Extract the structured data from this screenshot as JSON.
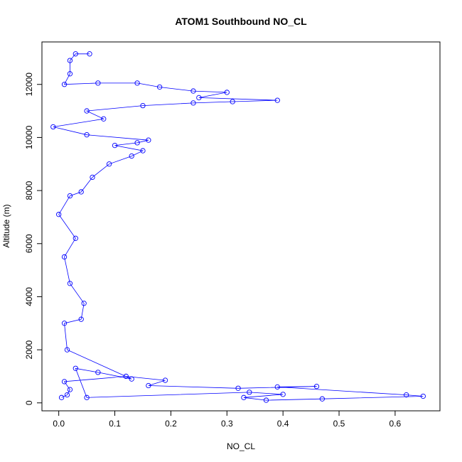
{
  "chart_data": {
    "type": "scatter",
    "title": "ATOM1 Southbound NO_CL",
    "xlabel": "NO_CL",
    "ylabel": "Altitude (m)",
    "xlim": [
      -0.03,
      0.68
    ],
    "ylim": [
      -300,
      13600
    ],
    "xticks": [
      0.0,
      0.1,
      0.2,
      0.3,
      0.4,
      0.5,
      0.6
    ],
    "xtick_labels": [
      "0.0",
      "0.1",
      "0.2",
      "0.3",
      "0.4",
      "0.5",
      "0.6"
    ],
    "yticks": [
      0,
      2000,
      4000,
      6000,
      8000,
      10000,
      12000
    ],
    "ytick_labels": [
      "0",
      "2000",
      "4000",
      "6000",
      "8000",
      "10000",
      "12000"
    ],
    "series_color": "#0000ff",
    "marker": "open-circle",
    "connected_line": true,
    "grid": false,
    "legend": "none",
    "points": [
      {
        "x": 0.005,
        "y": 200
      },
      {
        "x": 0.015,
        "y": 300
      },
      {
        "x": 0.02,
        "y": 500
      },
      {
        "x": 0.01,
        "y": 800
      },
      {
        "x": 0.12,
        "y": 1000
      },
      {
        "x": 0.19,
        "y": 850
      },
      {
        "x": 0.16,
        "y": 650
      },
      {
        "x": 0.32,
        "y": 550
      },
      {
        "x": 0.46,
        "y": 620
      },
      {
        "x": 0.39,
        "y": 600
      },
      {
        "x": 0.62,
        "y": 300
      },
      {
        "x": 0.65,
        "y": 250
      },
      {
        "x": 0.47,
        "y": 150
      },
      {
        "x": 0.37,
        "y": 100
      },
      {
        "x": 0.33,
        "y": 200
      },
      {
        "x": 0.4,
        "y": 320
      },
      {
        "x": 0.34,
        "y": 400
      },
      {
        "x": 0.05,
        "y": 200
      },
      {
        "x": 0.03,
        "y": 1300
      },
      {
        "x": 0.07,
        "y": 1150
      },
      {
        "x": 0.13,
        "y": 900
      },
      {
        "x": 0.015,
        "y": 2000
      },
      {
        "x": 0.01,
        "y": 3000
      },
      {
        "x": 0.04,
        "y": 3150
      },
      {
        "x": 0.045,
        "y": 3750
      },
      {
        "x": 0.02,
        "y": 4500
      },
      {
        "x": 0.01,
        "y": 5500
      },
      {
        "x": 0.03,
        "y": 6200
      },
      {
        "x": 0.0,
        "y": 7100
      },
      {
        "x": 0.02,
        "y": 7800
      },
      {
        "x": 0.04,
        "y": 7950
      },
      {
        "x": 0.06,
        "y": 8500
      },
      {
        "x": 0.09,
        "y": 9000
      },
      {
        "x": 0.13,
        "y": 9300
      },
      {
        "x": 0.15,
        "y": 9500
      },
      {
        "x": 0.1,
        "y": 9700
      },
      {
        "x": 0.14,
        "y": 9800
      },
      {
        "x": 0.16,
        "y": 9900
      },
      {
        "x": 0.05,
        "y": 10100
      },
      {
        "x": -0.01,
        "y": 10400
      },
      {
        "x": 0.08,
        "y": 10700
      },
      {
        "x": 0.05,
        "y": 11000
      },
      {
        "x": 0.15,
        "y": 11200
      },
      {
        "x": 0.24,
        "y": 11300
      },
      {
        "x": 0.31,
        "y": 11350
      },
      {
        "x": 0.39,
        "y": 11400
      },
      {
        "x": 0.25,
        "y": 11500
      },
      {
        "x": 0.3,
        "y": 11700
      },
      {
        "x": 0.24,
        "y": 11750
      },
      {
        "x": 0.18,
        "y": 11900
      },
      {
        "x": 0.14,
        "y": 12050
      },
      {
        "x": 0.07,
        "y": 12050
      },
      {
        "x": 0.01,
        "y": 12000
      },
      {
        "x": 0.02,
        "y": 12400
      },
      {
        "x": 0.02,
        "y": 12900
      },
      {
        "x": 0.03,
        "y": 13150
      },
      {
        "x": 0.055,
        "y": 13150
      }
    ]
  }
}
